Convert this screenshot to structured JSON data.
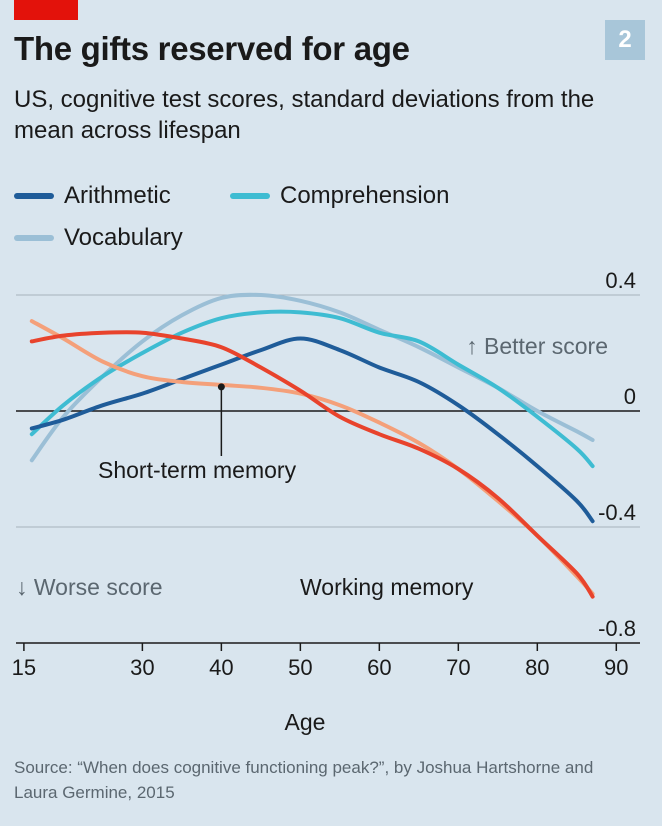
{
  "header": {
    "badge": "2",
    "title": "The gifts reserved for age",
    "subtitle": "US, cognitive test scores, standard deviations from the mean across lifespan"
  },
  "legend": {
    "arithmetic": "Arithmetic",
    "comprehension": "Comprehension",
    "vocabulary": "Vocabulary"
  },
  "annotations": {
    "better": "↑ Better score",
    "worse": "↓ Worse score",
    "short_term": "Short-term memory",
    "working": "Working memory"
  },
  "source": "Source: “When does cognitive functioning peak?”, by Joshua Hartshorne and Laura Germine, 2015",
  "colors": {
    "arithmetic": "#1f5c99",
    "comprehension": "#3ebcd2",
    "vocabulary": "#9bbfd6",
    "short_term": "#f4a07a",
    "working": "#e8432c"
  },
  "chart_data": {
    "type": "line",
    "xlabel": "Age",
    "ylabel": "",
    "xlim": [
      14,
      93
    ],
    "ylim": [
      -0.8,
      0.4
    ],
    "x_ticks": [
      15,
      30,
      40,
      50,
      60,
      70,
      80,
      90
    ],
    "y_ticks": [
      0.4,
      0,
      -0.4,
      -0.8
    ],
    "y_tick_labels": [
      "0.4",
      "0",
      "-0.4",
      "-0.8"
    ],
    "series": [
      {
        "name": "Vocabulary",
        "key": "vocabulary",
        "x": [
          16,
          20,
          25,
          30,
          35,
          40,
          45,
          50,
          55,
          60,
          65,
          70,
          75,
          80,
          85,
          87
        ],
        "y": [
          -0.17,
          -0.02,
          0.12,
          0.24,
          0.33,
          0.39,
          0.4,
          0.38,
          0.34,
          0.28,
          0.22,
          0.15,
          0.08,
          0.0,
          -0.07,
          -0.1
        ]
      },
      {
        "name": "Comprehension",
        "key": "comprehension",
        "x": [
          16,
          20,
          25,
          30,
          35,
          40,
          45,
          50,
          55,
          60,
          65,
          70,
          75,
          80,
          85,
          87
        ],
        "y": [
          -0.08,
          0.02,
          0.12,
          0.2,
          0.27,
          0.32,
          0.34,
          0.34,
          0.32,
          0.27,
          0.24,
          0.16,
          0.08,
          -0.02,
          -0.13,
          -0.19
        ]
      },
      {
        "name": "Arithmetic",
        "key": "arithmetic",
        "x": [
          16,
          20,
          25,
          30,
          35,
          40,
          45,
          50,
          55,
          60,
          65,
          70,
          75,
          80,
          85,
          87
        ],
        "y": [
          -0.06,
          -0.03,
          0.02,
          0.06,
          0.11,
          0.16,
          0.21,
          0.25,
          0.21,
          0.15,
          0.1,
          0.02,
          -0.08,
          -0.19,
          -0.31,
          -0.38
        ]
      },
      {
        "name": "Short-term memory",
        "key": "short_term",
        "x": [
          16,
          20,
          25,
          30,
          35,
          40,
          45,
          50,
          55,
          60,
          65,
          70,
          75,
          80,
          85,
          87
        ],
        "y": [
          0.31,
          0.25,
          0.17,
          0.12,
          0.1,
          0.09,
          0.08,
          0.06,
          0.02,
          -0.04,
          -0.11,
          -0.2,
          -0.31,
          -0.43,
          -0.57,
          -0.63
        ]
      },
      {
        "name": "Working memory",
        "key": "working",
        "x": [
          16,
          20,
          25,
          30,
          35,
          40,
          45,
          50,
          55,
          60,
          65,
          70,
          75,
          80,
          85,
          87
        ],
        "y": [
          0.24,
          0.26,
          0.27,
          0.27,
          0.25,
          0.22,
          0.15,
          0.07,
          -0.02,
          -0.08,
          -0.13,
          -0.2,
          -0.3,
          -0.43,
          -0.56,
          -0.64
        ]
      }
    ]
  }
}
